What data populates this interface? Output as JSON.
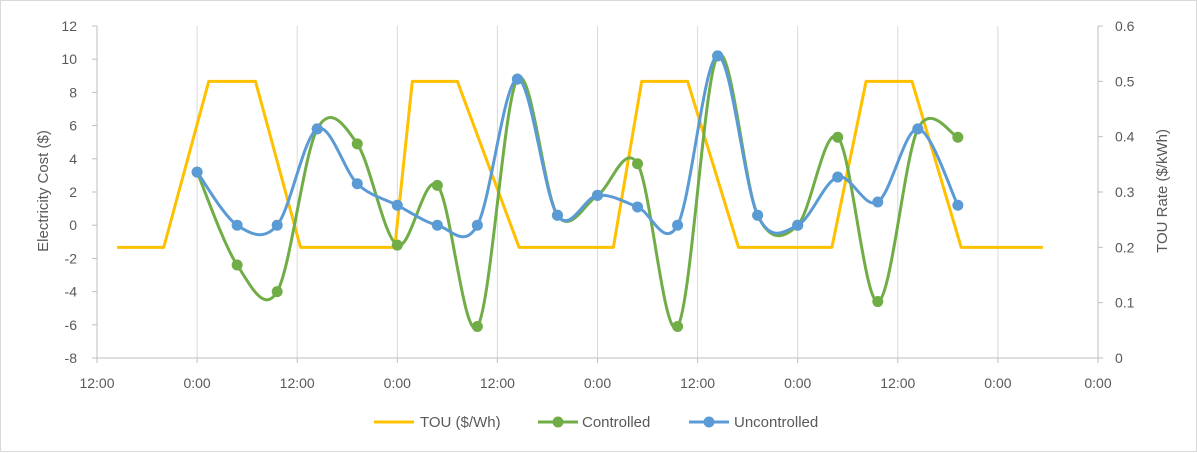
{
  "chart_data": {
    "type": "line",
    "xlabel": "",
    "ylabel": "Electricity Cost ($)",
    "y2label": "TOU Rate ($/kWh)",
    "x_unit": "hours",
    "x_range": [
      -12,
      108
    ],
    "x_ticks": [
      {
        "x": -12,
        "label": "12:00"
      },
      {
        "x": 0,
        "label": "0:00"
      },
      {
        "x": 12,
        "label": "12:00"
      },
      {
        "x": 24,
        "label": "0:00"
      },
      {
        "x": 36,
        "label": "12:00"
      },
      {
        "x": 48,
        "label": "0:00"
      },
      {
        "x": 60,
        "label": "12:00"
      },
      {
        "x": 72,
        "label": "0:00"
      },
      {
        "x": 84,
        "label": "12:00"
      },
      {
        "x": 96,
        "label": "0:00"
      },
      {
        "x": 108,
        "label": "0:00"
      }
    ],
    "ylim": [
      -8,
      12
    ],
    "y_ticks": [
      "12",
      "10",
      "8",
      "6",
      "4",
      "2",
      "0",
      "-2",
      "-4",
      "-6",
      "-8"
    ],
    "y2lim": [
      0,
      0.6
    ],
    "y2_ticks": [
      "0.6",
      "0.5",
      "0.4",
      "0.3",
      "0.2",
      "0.1",
      "0"
    ],
    "grid": "vertical",
    "legend_position": "bottom",
    "series": [
      {
        "name": "TOU ($/Wh)",
        "axis": "right",
        "color": "#ffc000",
        "smooth": false,
        "markers": false,
        "x": [
          -9.6,
          -4,
          1.4,
          7,
          12.4,
          23.7,
          25.8,
          31.2,
          38.6,
          49.9,
          53.3,
          58.8,
          64.9,
          76.1,
          80.2,
          85.7,
          91.6,
          101.4
        ],
        "values": [
          0.2,
          0.2,
          0.5,
          0.5,
          0.2,
          0.2,
          0.5,
          0.5,
          0.2,
          0.2,
          0.5,
          0.5,
          0.2,
          0.2,
          0.5,
          0.5,
          0.2,
          0.2
        ]
      },
      {
        "name": "Controlled",
        "axis": "left",
        "color": "#70ad47",
        "smooth": true,
        "markers": true,
        "x": [
          0,
          4.8,
          9.6,
          14.4,
          19.2,
          24,
          28.8,
          33.6,
          38.4,
          43.2,
          48,
          52.8,
          57.6,
          62.4,
          67.2,
          72,
          76.8,
          81.6,
          86.4,
          91.2
        ],
        "values": [
          3.2,
          -2.4,
          -4.0,
          5.8,
          4.9,
          -1.2,
          2.4,
          -6.1,
          8.8,
          0.6,
          1.8,
          3.7,
          -6.1,
          10.2,
          0.6,
          0.0,
          5.3,
          -4.6,
          5.8,
          5.3
        ]
      },
      {
        "name": "Uncontrolled",
        "axis": "left",
        "color": "#5b9bd5",
        "smooth": true,
        "markers": true,
        "x": [
          0,
          4.8,
          9.6,
          14.4,
          19.2,
          24,
          28.8,
          33.6,
          38.4,
          43.2,
          48,
          52.8,
          57.6,
          62.4,
          67.2,
          72,
          76.8,
          81.6,
          86.4,
          91.2
        ],
        "values": [
          3.2,
          0.0,
          0.0,
          5.8,
          2.5,
          1.2,
          0.0,
          0.0,
          8.8,
          0.6,
          1.8,
          1.1,
          0.0,
          10.2,
          0.6,
          0.0,
          2.9,
          1.4,
          5.8,
          1.2
        ]
      }
    ]
  }
}
